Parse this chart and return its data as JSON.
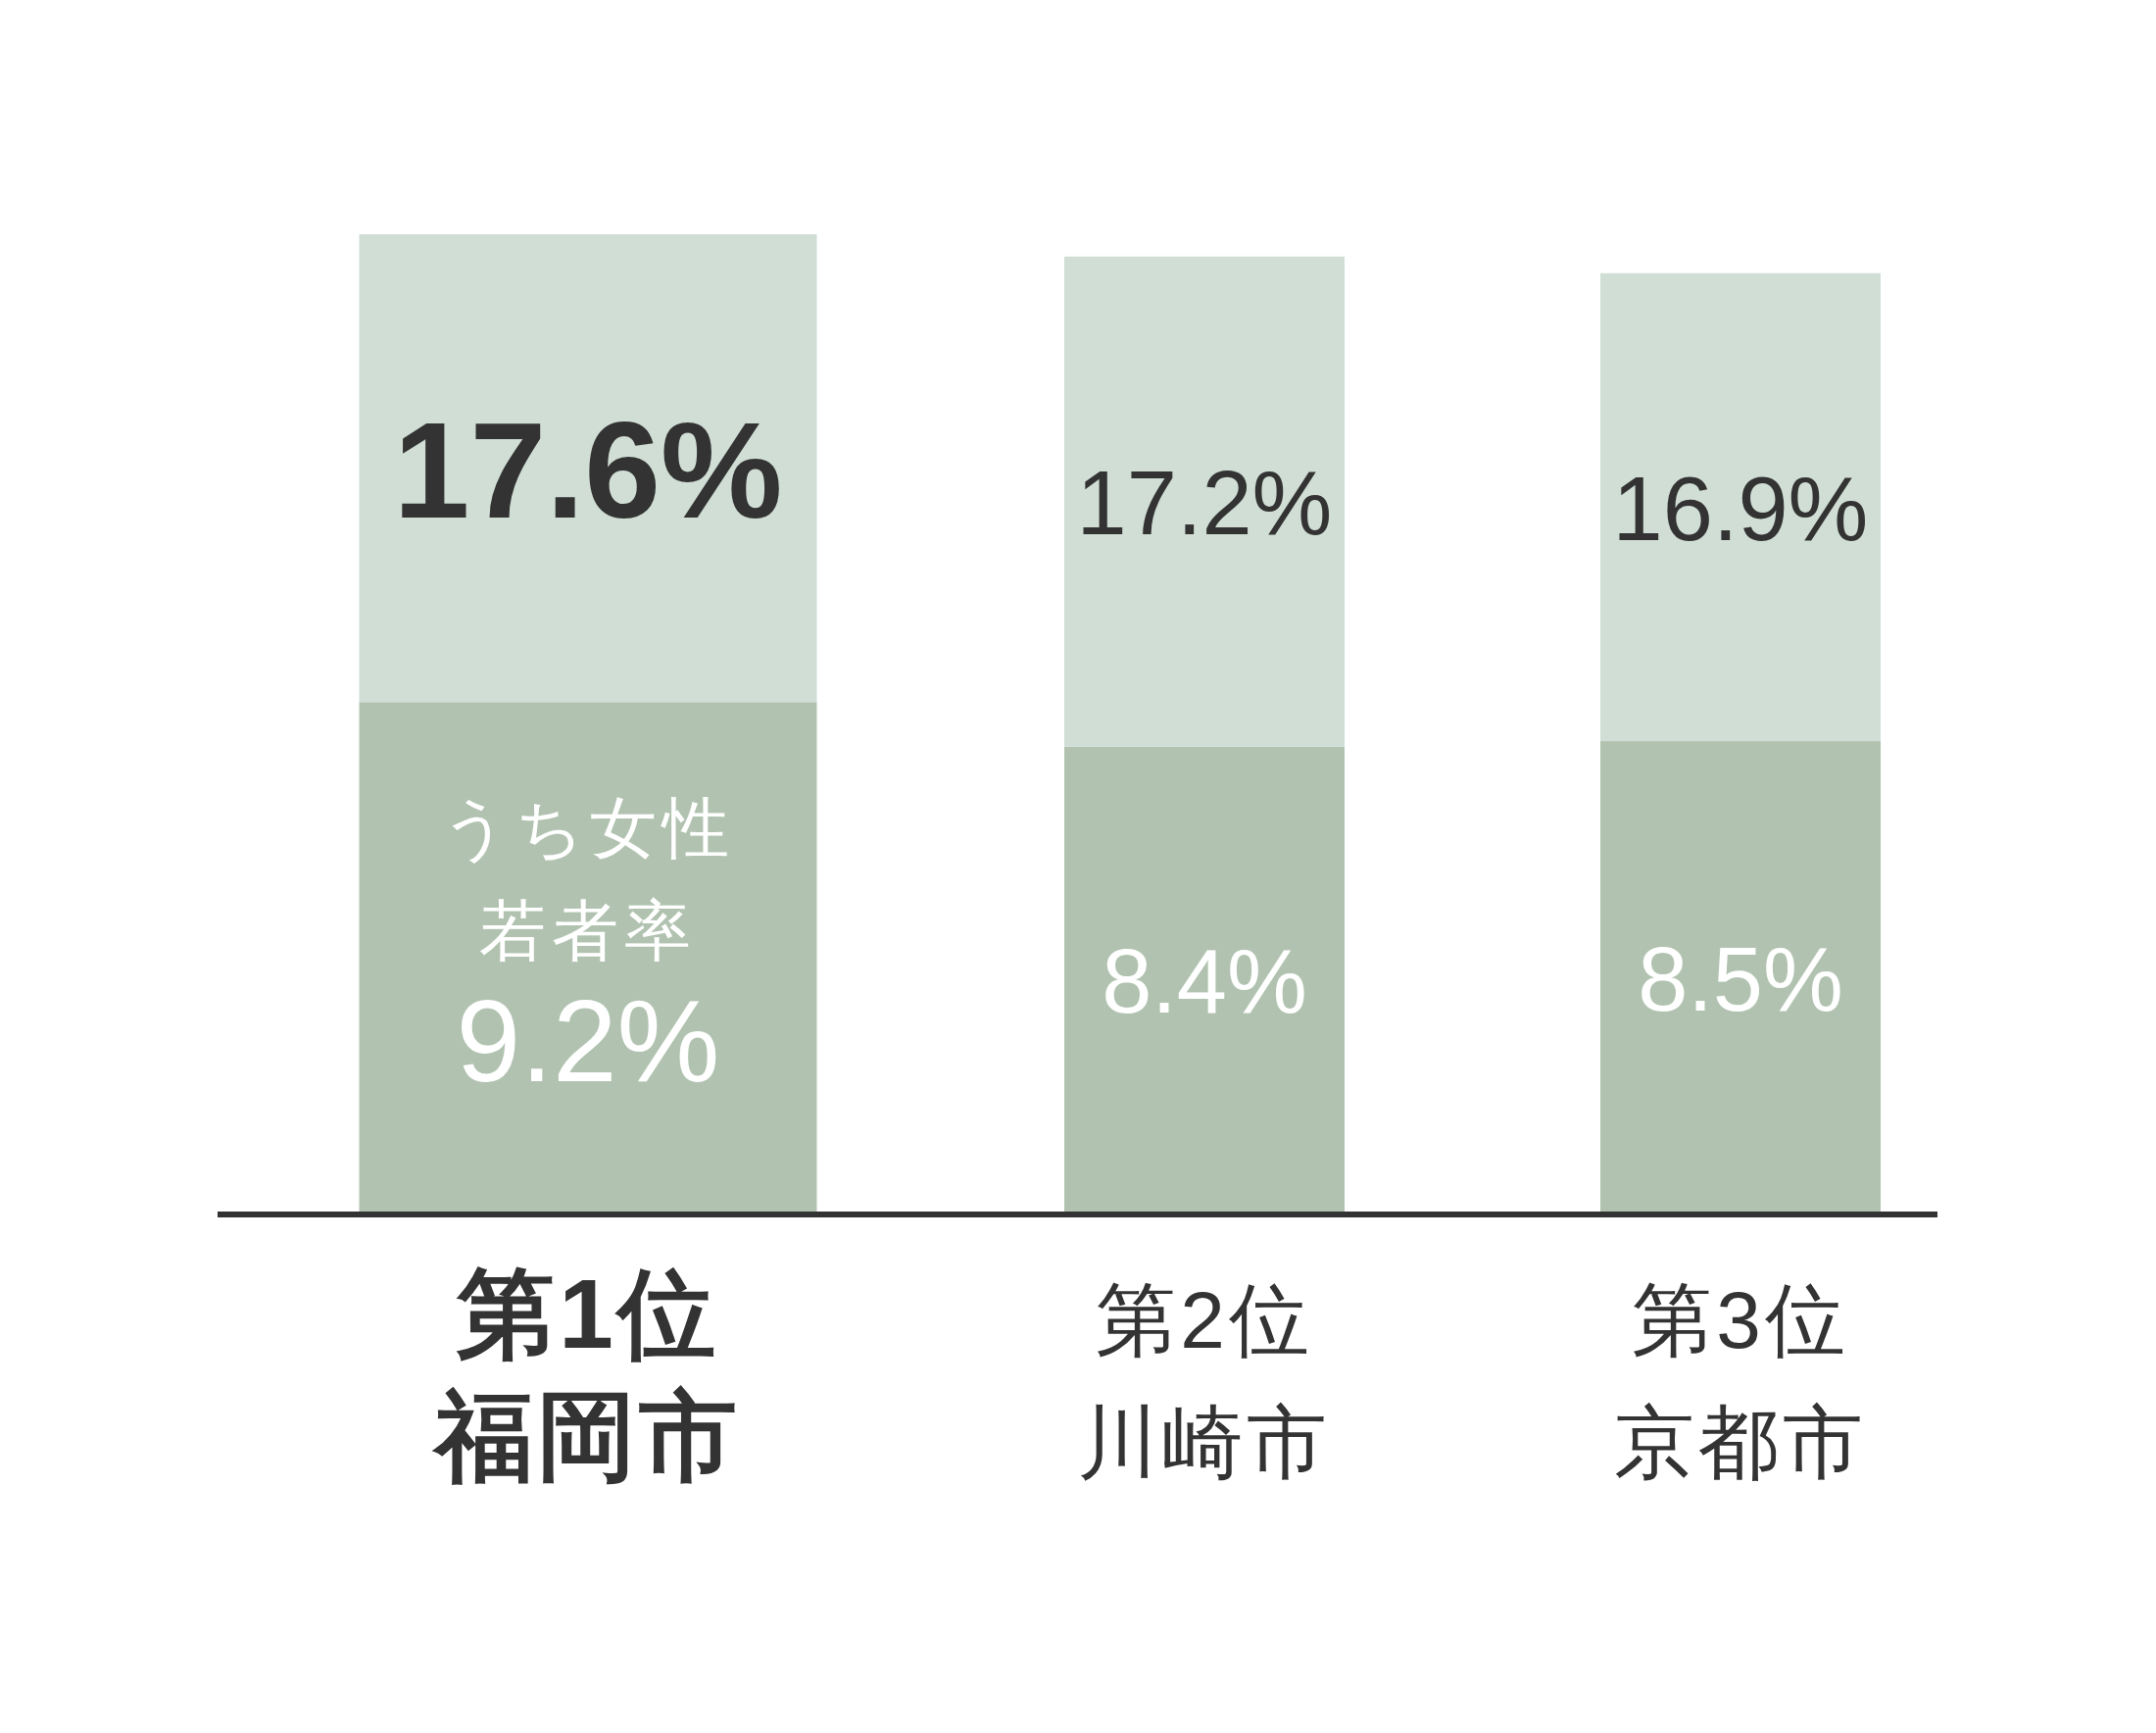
{
  "chart_data": {
    "type": "bar",
    "stacked": true,
    "categories": [
      "第1位福岡市",
      "第2位川崎市",
      "第3位京都市"
    ],
    "series": [
      {
        "name": "うち女性若者率",
        "color": "#b1c3b0",
        "values": [
          9.2,
          8.4,
          8.5
        ],
        "value_labels": [
          "9.2%",
          "8.4%",
          "8.5%"
        ]
      },
      {
        "color": "#d0ded5",
        "values": [
          8.4,
          8.8,
          8.4
        ]
      }
    ],
    "totals": [
      "17.6%",
      "17.2%",
      "16.9%"
    ]
  }
}
